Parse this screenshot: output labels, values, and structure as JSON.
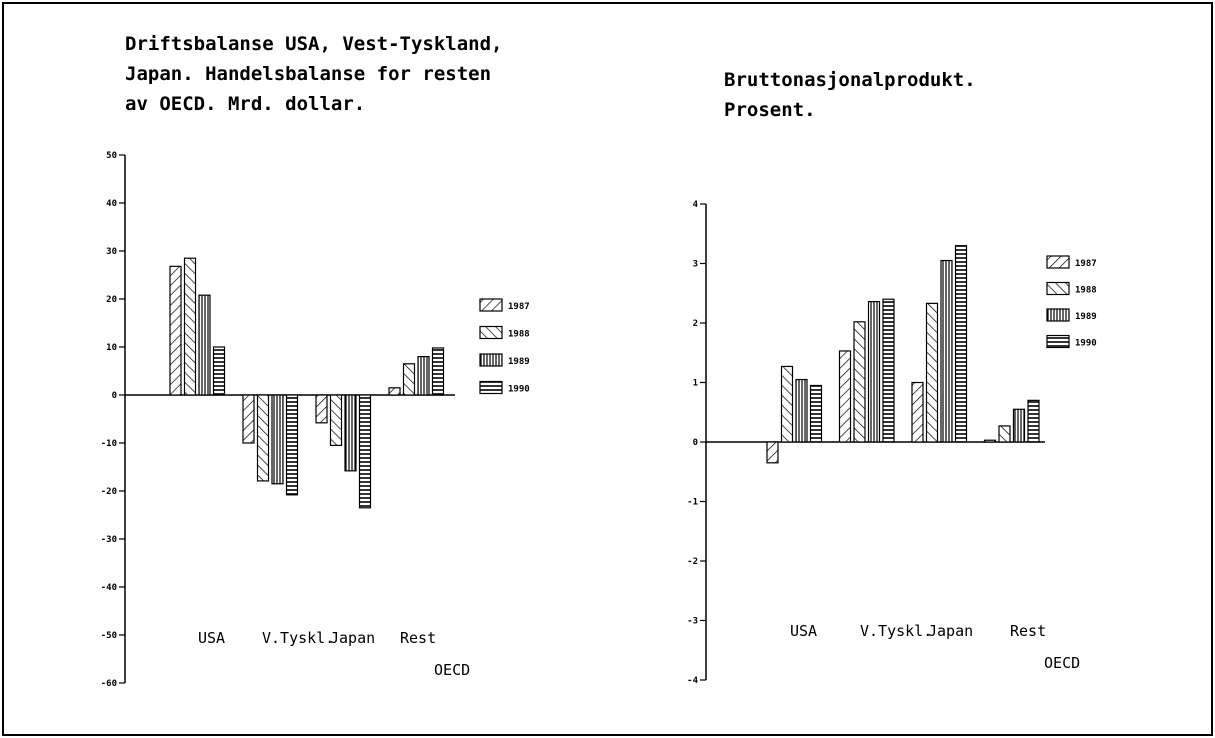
{
  "chart_data": [
    {
      "type": "bar",
      "title": [
        "Driftsbalanse USA, Vest-Tyskland,",
        "Japan. Handelsbalanse for resten",
        "av OECD. Mrd. dollar."
      ],
      "categories": [
        "USA",
        "V.Tyskl.",
        "Japan",
        "Rest OECD"
      ],
      "series": [
        {
          "name": "1987",
          "color": "#000000",
          "pattern": "diagonal",
          "values": [
            26.8,
            -10,
            -5.8,
            1.5
          ]
        },
        {
          "name": "1988",
          "color": "#000000",
          "pattern": "back-diagonal",
          "values": [
            28.5,
            -17.9,
            -10.5,
            6.5
          ]
        },
        {
          "name": "1989",
          "color": "#000000",
          "pattern": "vertical",
          "values": [
            20.8,
            -18.5,
            -15.8,
            8
          ]
        },
        {
          "name": "1990",
          "color": "#000000",
          "pattern": "horizontal",
          "values": [
            10,
            -20.8,
            -23.5,
            9.8
          ]
        }
      ],
      "ylim": [
        -60,
        50
      ],
      "yticks": [
        -60,
        -50,
        -40,
        -30,
        -20,
        -10,
        0,
        10,
        20,
        30,
        40,
        50
      ],
      "grid": false
    },
    {
      "type": "bar",
      "title": [
        "Bruttonasjonalprodukt.",
        "Prosent."
      ],
      "categories": [
        "USA",
        "V.Tyskl.",
        "Japan",
        "Rest OECD"
      ],
      "series": [
        {
          "name": "1987",
          "color": "#000000",
          "pattern": "diagonal",
          "values": [
            -0.35,
            1.53,
            1.0,
            0.03
          ]
        },
        {
          "name": "1988",
          "color": "#000000",
          "pattern": "back-diagonal",
          "values": [
            1.27,
            2.02,
            2.33,
            0.27
          ]
        },
        {
          "name": "1989",
          "color": "#000000",
          "pattern": "vertical",
          "values": [
            1.05,
            2.36,
            3.05,
            0.55
          ]
        },
        {
          "name": "1990",
          "color": "#000000",
          "pattern": "horizontal",
          "values": [
            0.95,
            2.4,
            3.3,
            0.7
          ]
        }
      ],
      "ylim": [
        -4,
        4
      ],
      "yticks": [
        -4,
        -3,
        -2,
        -1,
        0,
        1,
        2,
        3,
        4
      ],
      "grid": false
    }
  ]
}
